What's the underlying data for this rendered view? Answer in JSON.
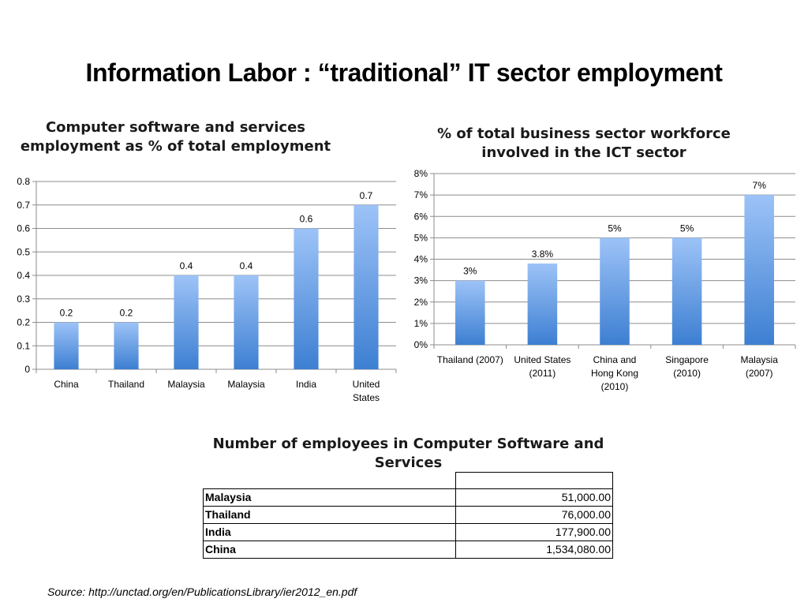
{
  "slide": {
    "title": "Information Labor : “traditional” IT sector employment",
    "source": "Source: http://unctad.org/en/PublicationsLibrary/ier2012_en.pdf"
  },
  "chart_data": [
    {
      "type": "bar",
      "title": "Computer software and services employment as % of total employment",
      "categories": [
        [
          "China"
        ],
        [
          "Thailand"
        ],
        [
          "Malaysia"
        ],
        [
          "Malaysia"
        ],
        [
          "India"
        ],
        [
          "United",
          "States"
        ]
      ],
      "values": [
        0.2,
        0.2,
        0.4,
        0.4,
        0.6,
        0.7
      ],
      "data_labels": [
        "0.2",
        "0.2",
        "0.4",
        "0.4",
        "0.6",
        "0.7"
      ],
      "y_ticks": [
        "0",
        "0.1",
        "0.2",
        "0.3",
        "0.4",
        "0.5",
        "0.6",
        "0.7",
        "0.8"
      ],
      "ylim": [
        0,
        0.8
      ],
      "grid": true,
      "bar_color_top": "#9dc3f7",
      "bar_color_bottom": "#3d7fd2"
    },
    {
      "type": "bar",
      "title": "% of total business sector workforce involved in the ICT sector",
      "categories": [
        [
          "Thailand (2007)"
        ],
        [
          "United States",
          "(2011)"
        ],
        [
          "China and",
          "Hong Kong",
          "(2010)"
        ],
        [
          "Singapore",
          "(2010)"
        ],
        [
          "Malaysia",
          "(2007)"
        ]
      ],
      "values": [
        3,
        3.8,
        5,
        5,
        7
      ],
      "data_labels": [
        "3%",
        "3.8%",
        "5%",
        "5%",
        "7%"
      ],
      "y_ticks": [
        "0%",
        "1%",
        "2%",
        "3%",
        "4%",
        "5%",
        "6%",
        "7%",
        "8%"
      ],
      "ylim": [
        0,
        8
      ],
      "grid": true,
      "bar_color_top": "#9dc3f7",
      "bar_color_bottom": "#3d7fd2"
    },
    {
      "type": "table",
      "title": "Number of employees in Computer Software and Services",
      "rows": [
        {
          "country": "Malaysia",
          "value": "51,000.00"
        },
        {
          "country": "Thailand",
          "value": "76,000.00"
        },
        {
          "country": "India",
          "value": "177,900.00"
        },
        {
          "country": "China",
          "value": "1,534,080.00"
        }
      ]
    }
  ]
}
